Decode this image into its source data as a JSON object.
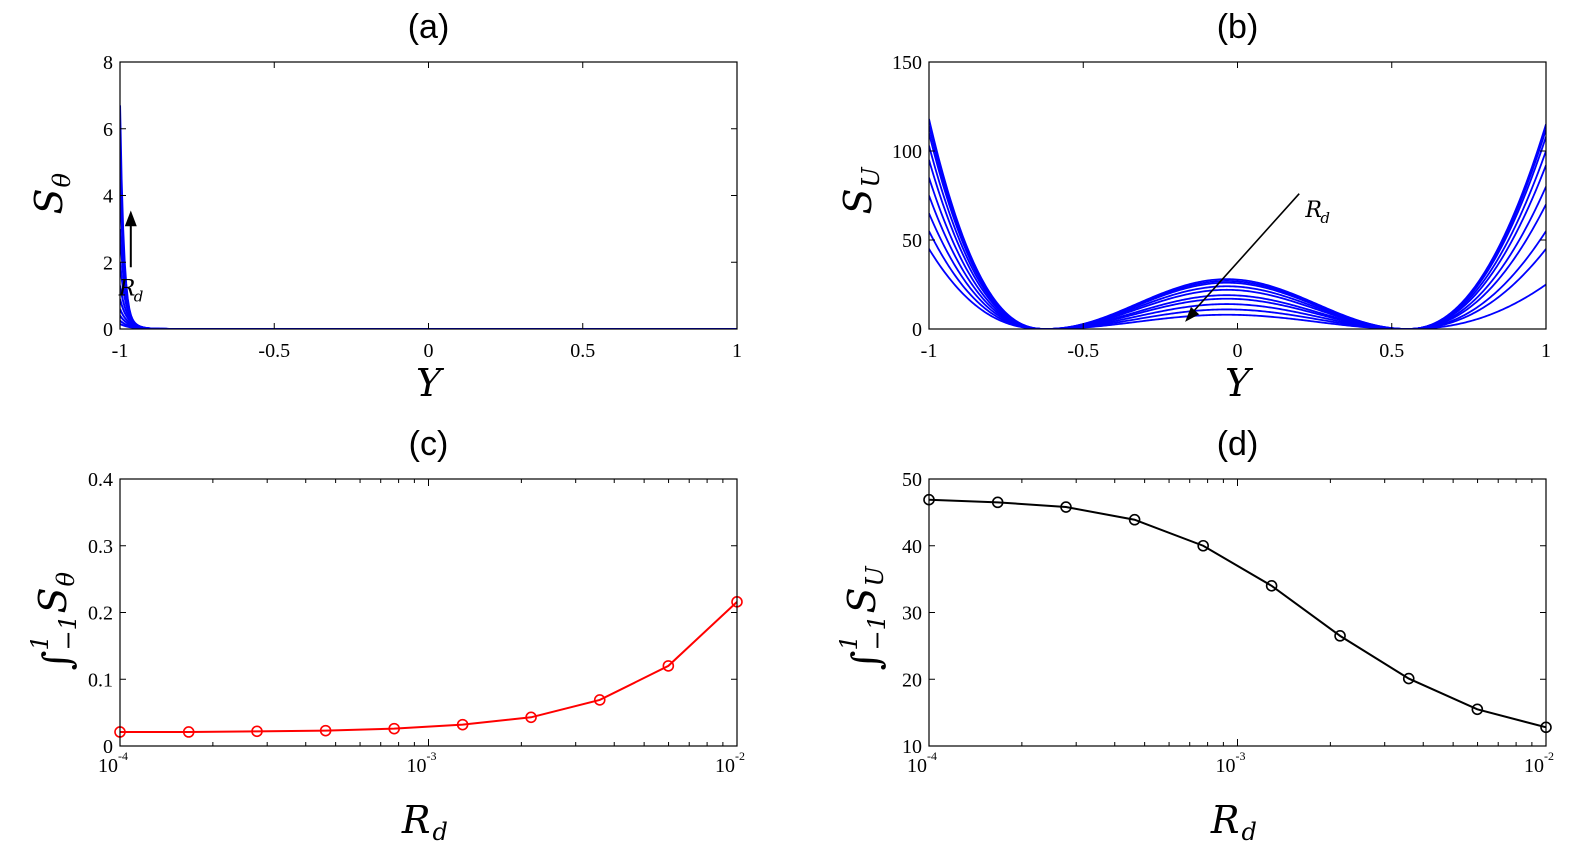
{
  "chart_data": [
    {
      "id": "a",
      "type": "line",
      "title": "(a)",
      "xlabel": "Y",
      "ylabel": {
        "base": "S",
        "sub": "θ"
      },
      "xlim": [
        -1,
        1
      ],
      "ylim": [
        0,
        8
      ],
      "xticks": [
        "-1",
        "-0.5",
        "0",
        "0.5",
        "1"
      ],
      "yticks": [
        "0",
        "2",
        "4",
        "6",
        "8"
      ],
      "annotation": {
        "base": "R",
        "sub": "d"
      },
      "series_color": "#0000ff",
      "series": [
        {
          "peak": 0.15,
          "k": 30
        },
        {
          "peak": 0.25,
          "k": 32
        },
        {
          "peak": 0.4,
          "k": 34
        },
        {
          "peak": 0.6,
          "k": 37
        },
        {
          "peak": 0.9,
          "k": 40
        },
        {
          "peak": 1.3,
          "k": 44
        },
        {
          "peak": 2.0,
          "k": 50
        },
        {
          "peak": 3.0,
          "k": 58
        },
        {
          "peak": 4.5,
          "k": 68
        },
        {
          "peak": 6.7,
          "k": 80
        }
      ]
    },
    {
      "id": "b",
      "type": "line",
      "title": "(b)",
      "xlabel": "Y",
      "ylabel": {
        "base": "S",
        "sub": "U"
      },
      "xlim": [
        -1,
        1
      ],
      "ylim": [
        0,
        150
      ],
      "xticks": [
        "-1",
        "-0.5",
        "0",
        "0.5",
        "1"
      ],
      "yticks": [
        "0",
        "50",
        "100",
        "150"
      ],
      "annotation": {
        "base": "R",
        "sub": "d"
      },
      "series_color": "#0000ff",
      "series": [
        {
          "left": 118,
          "mid": 28,
          "right": 115
        },
        {
          "left": 114,
          "mid": 27,
          "right": 112
        },
        {
          "left": 110,
          "mid": 26,
          "right": 108
        },
        {
          "left": 103,
          "mid": 24,
          "right": 100
        },
        {
          "left": 95,
          "mid": 22,
          "right": 92
        },
        {
          "left": 85,
          "mid": 19,
          "right": 80
        },
        {
          "left": 75,
          "mid": 17,
          "right": 70
        },
        {
          "left": 65,
          "mid": 14,
          "right": 55
        },
        {
          "left": 55,
          "mid": 11,
          "right": 45
        },
        {
          "left": 45,
          "mid": 8,
          "right": 25
        }
      ]
    },
    {
      "id": "c",
      "type": "line",
      "title": "(c)",
      "xlabel": {
        "base": "R",
        "sub": "d"
      },
      "ylabel": {
        "integral": "∫",
        "upper": "1",
        "lower": "−1",
        "base": "S",
        "sub": "θ"
      },
      "xscale": "log",
      "xlim": [
        0.0001,
        0.01
      ],
      "ylim": [
        0,
        0.4
      ],
      "xticks": [
        {
          "base": "10",
          "exp": "-4"
        },
        {
          "base": "10",
          "exp": "-3"
        },
        {
          "base": "10",
          "exp": "-2"
        }
      ],
      "yticks": [
        "0",
        "0.1",
        "0.2",
        "0.3",
        "0.4"
      ],
      "series_color": "#ff0000",
      "x": [
        0.0001,
        0.000167,
        0.000278,
        0.000464,
        0.000774,
        0.00129,
        0.00215,
        0.00359,
        0.00599,
        0.01
      ],
      "values": [
        0.021,
        0.021,
        0.022,
        0.023,
        0.026,
        0.032,
        0.043,
        0.069,
        0.12,
        0.216
      ]
    },
    {
      "id": "d",
      "type": "line",
      "title": "(d)",
      "xlabel": {
        "base": "R",
        "sub": "d"
      },
      "ylabel": {
        "integral": "∫",
        "upper": "1",
        "lower": "−1",
        "base": "S",
        "sub": "U"
      },
      "xscale": "log",
      "xlim": [
        0.0001,
        0.01
      ],
      "ylim": [
        10,
        50
      ],
      "xticks": [
        {
          "base": "10",
          "exp": "-4"
        },
        {
          "base": "10",
          "exp": "-3"
        },
        {
          "base": "10",
          "exp": "-2"
        }
      ],
      "yticks": [
        "10",
        "20",
        "30",
        "40",
        "50"
      ],
      "series_color": "#000000",
      "x": [
        0.0001,
        0.000167,
        0.000278,
        0.000464,
        0.000774,
        0.00129,
        0.00215,
        0.00359,
        0.00599,
        0.01
      ],
      "values": [
        46.9,
        46.5,
        45.8,
        43.9,
        40.0,
        34.0,
        26.5,
        20.1,
        15.5,
        12.8
      ]
    }
  ]
}
